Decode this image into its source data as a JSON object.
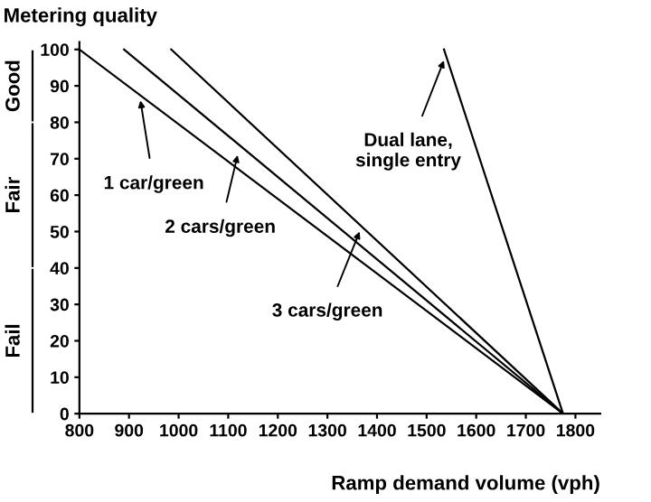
{
  "chart_data": {
    "type": "line",
    "title": "Metering quality",
    "xlabel": "Ramp demand volume (vph)",
    "xlim": [
      800,
      1850
    ],
    "ylim": [
      0,
      102
    ],
    "xticks": [
      800,
      900,
      1000,
      1100,
      1200,
      1300,
      1400,
      1500,
      1600,
      1700,
      1800
    ],
    "yticks": [
      0,
      10,
      20,
      30,
      40,
      50,
      60,
      70,
      80,
      90,
      100
    ],
    "grid": false,
    "marker": "none",
    "line_style": "solid",
    "series": [
      {
        "color": "#000000",
        "x": [
          800,
          1775
        ],
        "values": [
          100,
          0
        ]
      },
      {
        "color": "#000000",
        "x": [
          890,
          1775
        ],
        "values": [
          100,
          0
        ]
      },
      {
        "color": "#000000",
        "x": [
          985,
          1775
        ],
        "values": [
          100,
          0
        ]
      },
      {
        "color": "#000000",
        "x": [
          1535,
          1775
        ],
        "values": [
          100,
          0
        ]
      }
    ],
    "annotations": [
      {
        "text": "1 car/green",
        "x": 923,
        "y": 86
      },
      {
        "text": "2 cars/green",
        "x": 1119,
        "y": 71
      },
      {
        "text": "3 cars/green",
        "x": 1365,
        "y": 50
      },
      {
        "text": "Dual lane,\nsingle entry",
        "x": 1535,
        "y": 97
      },
      "Good",
      "Fair",
      "Fail"
    ]
  }
}
